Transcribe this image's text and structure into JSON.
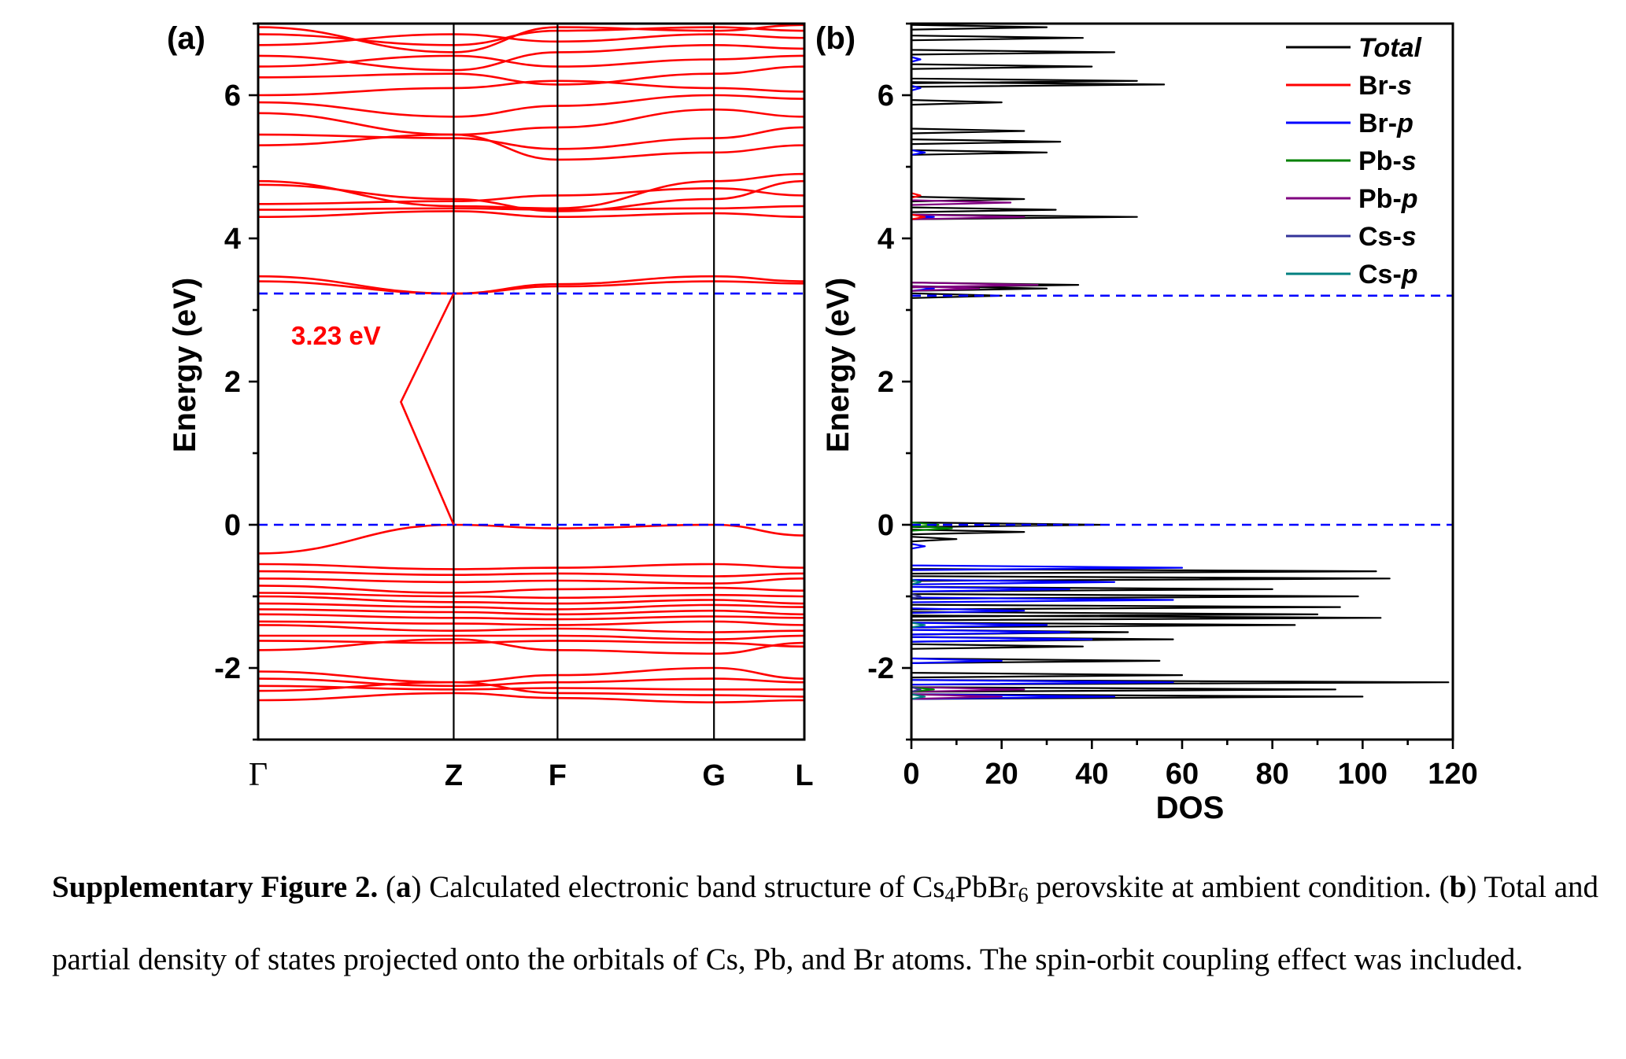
{
  "chart_data": [
    {
      "panel": "(a)",
      "type": "line",
      "ylabel": "Energy (eV)",
      "ylim": [
        -3,
        7
      ],
      "yticks": [
        -2,
        0,
        2,
        4,
        6
      ],
      "k_points": [
        "Γ",
        "Z",
        "F",
        "G",
        "L"
      ],
      "k_positions": [
        0,
        1.45,
        2.22,
        3.38,
        4.05
      ],
      "band_color": "#ff0000",
      "reference_lines": [
        {
          "y": 0,
          "style": "dashed",
          "color": "#0000ff"
        },
        {
          "y": 3.23,
          "style": "dashed",
          "color": "#0000ff"
        }
      ],
      "gap_annotation": {
        "text": "3.23 eV",
        "from": {
          "k": "Z",
          "E": 0
        },
        "to": {
          "k": "Z",
          "E": 3.23
        }
      },
      "bands": [
        {
          "name": "band-c1",
          "values": [
            3.47,
            3.23,
            3.36,
            3.47,
            3.4
          ]
        },
        {
          "name": "band-c2",
          "values": [
            3.4,
            3.23,
            3.33,
            3.4,
            3.37
          ]
        },
        {
          "name": "band-c3",
          "values": [
            4.3,
            4.38,
            4.3,
            4.35,
            4.3
          ]
        },
        {
          "name": "band-c4",
          "values": [
            4.4,
            4.42,
            4.4,
            4.42,
            4.45
          ]
        },
        {
          "name": "band-c5",
          "values": [
            4.48,
            4.52,
            4.6,
            4.7,
            4.6
          ]
        },
        {
          "name": "band-c6",
          "values": [
            4.75,
            4.55,
            4.38,
            4.55,
            4.8
          ]
        },
        {
          "name": "band-c7",
          "values": [
            4.8,
            4.45,
            4.42,
            4.8,
            4.9
          ]
        },
        {
          "name": "band-c8",
          "values": [
            5.3,
            5.45,
            5.1,
            5.2,
            5.3
          ]
        },
        {
          "name": "band-c9",
          "values": [
            5.45,
            5.4,
            5.25,
            5.4,
            5.55
          ]
        },
        {
          "name": "band-c10",
          "values": [
            5.75,
            5.45,
            5.55,
            5.8,
            5.7
          ]
        },
        {
          "name": "band-c11",
          "values": [
            5.9,
            5.7,
            5.85,
            6.0,
            5.95
          ]
        },
        {
          "name": "band-c12",
          "values": [
            6.0,
            6.1,
            6.2,
            6.1,
            6.05
          ]
        },
        {
          "name": "band-c13",
          "values": [
            6.25,
            6.3,
            6.15,
            6.3,
            6.4
          ]
        },
        {
          "name": "band-c14",
          "values": [
            6.4,
            6.55,
            6.4,
            6.5,
            6.55
          ]
        },
        {
          "name": "band-c15",
          "values": [
            6.55,
            6.35,
            6.6,
            6.7,
            6.65
          ]
        },
        {
          "name": "band-c16",
          "values": [
            6.7,
            6.85,
            6.75,
            6.85,
            6.8
          ]
        },
        {
          "name": "band-c17",
          "values": [
            6.85,
            6.7,
            6.9,
            6.95,
            6.9
          ]
        },
        {
          "name": "band-c18",
          "values": [
            6.95,
            6.6,
            6.95,
            6.9,
            6.98
          ]
        },
        {
          "name": "band-v1",
          "values": [
            -0.4,
            0.0,
            -0.05,
            0.0,
            -0.15
          ]
        },
        {
          "name": "band-v2",
          "values": [
            -0.55,
            -0.62,
            -0.6,
            -0.55,
            -0.6
          ]
        },
        {
          "name": "band-v3",
          "values": [
            -0.65,
            -0.7,
            -0.68,
            -0.72,
            -0.68
          ]
        },
        {
          "name": "band-v4",
          "values": [
            -0.75,
            -0.8,
            -0.78,
            -0.82,
            -0.75
          ]
        },
        {
          "name": "band-v5",
          "values": [
            -0.85,
            -0.95,
            -0.9,
            -0.88,
            -0.92
          ]
        },
        {
          "name": "band-v6",
          "values": [
            -0.95,
            -1.0,
            -1.02,
            -0.98,
            -1.0
          ]
        },
        {
          "name": "band-v7",
          "values": [
            -1.0,
            -1.08,
            -1.1,
            -1.05,
            -1.1
          ]
        },
        {
          "name": "band-v8",
          "values": [
            -1.1,
            -1.15,
            -1.18,
            -1.12,
            -1.15
          ]
        },
        {
          "name": "band-v9",
          "values": [
            -1.18,
            -1.22,
            -1.25,
            -1.2,
            -1.25
          ]
        },
        {
          "name": "band-v10",
          "values": [
            -1.25,
            -1.3,
            -1.32,
            -1.28,
            -1.3
          ]
        },
        {
          "name": "band-v11",
          "values": [
            -1.35,
            -1.38,
            -1.4,
            -1.35,
            -1.4
          ]
        },
        {
          "name": "band-v12",
          "values": [
            -1.4,
            -1.48,
            -1.45,
            -1.5,
            -1.48
          ]
        },
        {
          "name": "band-v13",
          "values": [
            -1.55,
            -1.55,
            -1.55,
            -1.6,
            -1.55
          ]
        },
        {
          "name": "band-v14",
          "values": [
            -1.62,
            -1.65,
            -1.62,
            -1.65,
            -1.7
          ]
        },
        {
          "name": "band-v15",
          "values": [
            -1.75,
            -1.6,
            -1.75,
            -1.8,
            -1.65
          ]
        },
        {
          "name": "band-v16",
          "values": [
            -2.05,
            -2.2,
            -2.1,
            -2.0,
            -2.15
          ]
        },
        {
          "name": "band-v17",
          "values": [
            -2.15,
            -2.25,
            -2.2,
            -2.15,
            -2.2
          ]
        },
        {
          "name": "band-v18",
          "values": [
            -2.25,
            -2.3,
            -2.28,
            -2.3,
            -2.3
          ]
        },
        {
          "name": "band-v19",
          "values": [
            -2.32,
            -2.2,
            -2.35,
            -2.38,
            -2.4
          ]
        },
        {
          "name": "band-v20",
          "values": [
            -2.45,
            -2.35,
            -2.42,
            -2.48,
            -2.45
          ]
        }
      ]
    },
    {
      "panel": "(b)",
      "type": "line",
      "xlabel": "DOS",
      "ylabel": "Energy (eV)",
      "xlim": [
        0,
        120
      ],
      "ylim": [
        -3,
        7
      ],
      "xticks": [
        0,
        20,
        40,
        60,
        80,
        100,
        120
      ],
      "yticks": [
        -2,
        0,
        2,
        4,
        6
      ],
      "reference_lines": [
        {
          "y": 0,
          "style": "dashed",
          "color": "#0000ff"
        },
        {
          "y": 3.2,
          "style": "dashed",
          "color": "#0000ff"
        }
      ],
      "legend_position": "top-right",
      "series": [
        {
          "name": "Total",
          "label_main": "Total",
          "label_italic": "",
          "color": "#000000",
          "peaks": [
            [
              -2.4,
              100
            ],
            [
              -2.3,
              94
            ],
            [
              -2.2,
              119
            ],
            [
              -2.1,
              60
            ],
            [
              -1.9,
              55
            ],
            [
              -1.7,
              38
            ],
            [
              -1.6,
              58
            ],
            [
              -1.5,
              48
            ],
            [
              -1.4,
              85
            ],
            [
              -1.3,
              104
            ],
            [
              -1.25,
              90
            ],
            [
              -1.15,
              95
            ],
            [
              -1.0,
              99
            ],
            [
              -0.9,
              80
            ],
            [
              -0.75,
              106
            ],
            [
              -0.65,
              103
            ],
            [
              -0.2,
              10
            ],
            [
              -0.1,
              25
            ],
            [
              0.0,
              42
            ],
            [
              3.2,
              20
            ],
            [
              3.3,
              30
            ],
            [
              3.35,
              37
            ],
            [
              4.3,
              50
            ],
            [
              4.4,
              32
            ],
            [
              4.55,
              25
            ],
            [
              5.2,
              30
            ],
            [
              5.35,
              33
            ],
            [
              5.5,
              25
            ],
            [
              5.9,
              20
            ],
            [
              6.15,
              56
            ],
            [
              6.2,
              50
            ],
            [
              6.4,
              40
            ],
            [
              6.6,
              45
            ],
            [
              6.8,
              38
            ],
            [
              6.95,
              30
            ]
          ]
        },
        {
          "name": "Br-s",
          "label_main": "Br-",
          "label_italic": "s",
          "color": "#ff0000",
          "peaks": [
            [
              -2.3,
              2
            ],
            [
              4.3,
              3
            ],
            [
              4.6,
              2
            ]
          ]
        },
        {
          "name": "Br-p",
          "label_main": "Br-",
          "label_italic": "p",
          "color": "#0000ff",
          "peaks": [
            [
              -2.4,
              45
            ],
            [
              -2.2,
              58
            ],
            [
              -1.9,
              20
            ],
            [
              -1.6,
              40
            ],
            [
              -1.5,
              35
            ],
            [
              -1.4,
              30
            ],
            [
              -1.2,
              25
            ],
            [
              -1.05,
              58
            ],
            [
              -0.9,
              35
            ],
            [
              -0.8,
              45
            ],
            [
              -0.6,
              60
            ],
            [
              -0.3,
              3
            ],
            [
              3.3,
              5
            ],
            [
              4.3,
              5
            ],
            [
              5.2,
              3
            ],
            [
              6.1,
              2
            ],
            [
              6.5,
              2
            ]
          ]
        },
        {
          "name": "Pb-s",
          "label_main": "Pb-",
          "label_italic": "s",
          "color": "#008000",
          "peaks": [
            [
              -2.3,
              5
            ],
            [
              -0.05,
              9
            ],
            [
              0.0,
              6
            ]
          ]
        },
        {
          "name": "Pb-p",
          "label_main": "Pb-",
          "label_italic": "p",
          "color": "#800080",
          "peaks": [
            [
              -2.4,
              20
            ],
            [
              -2.3,
              25
            ],
            [
              3.35,
              28
            ],
            [
              3.3,
              15
            ],
            [
              4.3,
              25
            ],
            [
              4.5,
              22
            ]
          ]
        },
        {
          "name": "Cs-s",
          "label_main": "Cs-",
          "label_italic": "s",
          "color": "#333399",
          "peaks": [
            [
              -2.3,
              2
            ],
            [
              -1.0,
              2
            ]
          ]
        },
        {
          "name": "Cs-p",
          "label_main": "Cs-",
          "label_italic": "p",
          "color": "#008080",
          "peaks": [
            [
              -2.4,
              3
            ],
            [
              -1.4,
              3
            ],
            [
              -0.8,
              2
            ]
          ]
        }
      ]
    }
  ],
  "caption": {
    "lead": "Supplementary Figure 2.",
    "a_tag": "a",
    "a_text_before": " Calculated electronic band structure of Cs",
    "sub1": "4",
    "a_text_mid": "PbBr",
    "sub2": "6",
    "a_text_after": " perovskite at ambient condition. (",
    "b_tag": "b",
    "b_text": ") Total and partial density of states projected onto the orbitals of Cs, Pb, and Br atoms. The spin-orbit coupling effect was included."
  }
}
